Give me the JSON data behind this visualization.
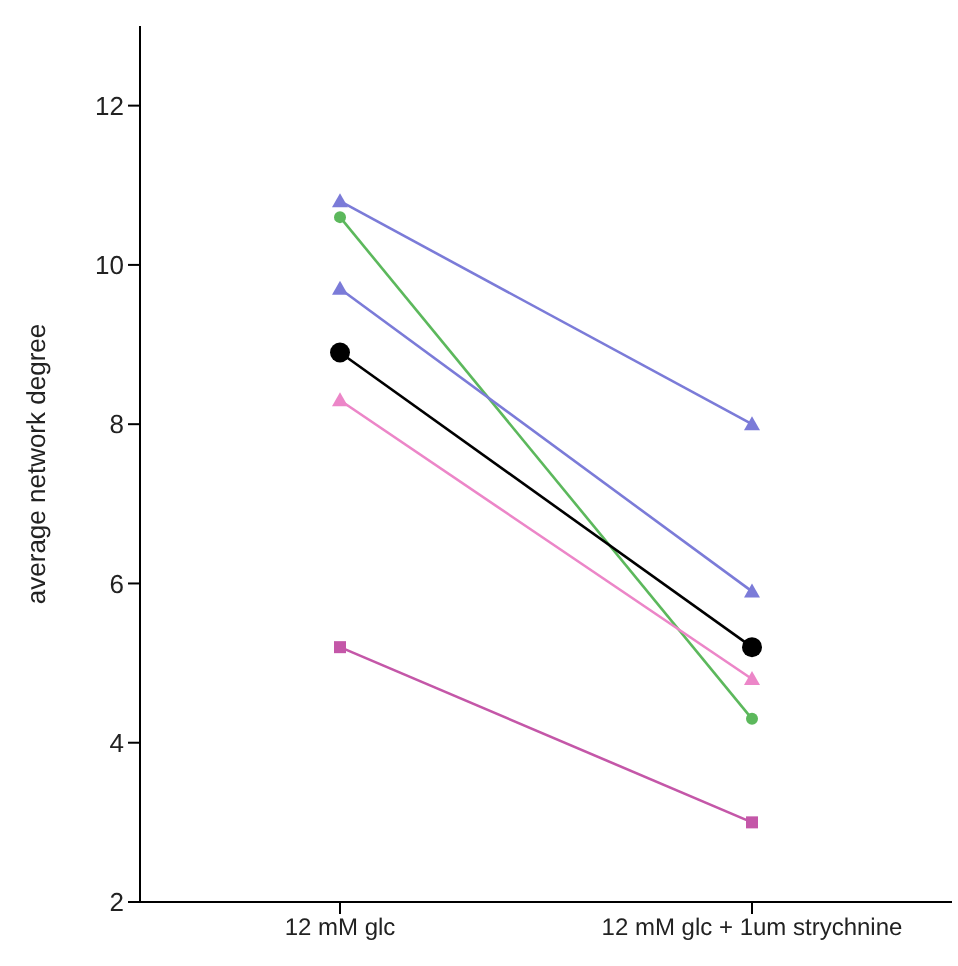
{
  "chart_data": {
    "type": "line",
    "ylabel": "average network degree",
    "categories": [
      "12 mM glc",
      "12 mM glc + 1um strychnine"
    ],
    "series": [
      {
        "color": "#7b7bd8",
        "marker": "triangle",
        "values": [
          10.8,
          8.0
        ]
      },
      {
        "color": "#5cb85c",
        "marker": "circle",
        "values": [
          10.6,
          4.3
        ]
      },
      {
        "color": "#7b7bd8",
        "marker": "triangle",
        "values": [
          9.7,
          5.9
        ]
      },
      {
        "color": "#000000",
        "marker": "circle",
        "values": [
          8.9,
          5.2
        ]
      },
      {
        "color": "#ec86c8",
        "marker": "triangle",
        "values": [
          8.3,
          4.8
        ]
      },
      {
        "color": "#c457a8",
        "marker": "square",
        "values": [
          5.2,
          3.0
        ]
      }
    ],
    "ylim": [
      2,
      13
    ],
    "yticks": [
      2,
      4,
      6,
      8,
      10,
      12
    ],
    "grid": false,
    "legend": false
  }
}
